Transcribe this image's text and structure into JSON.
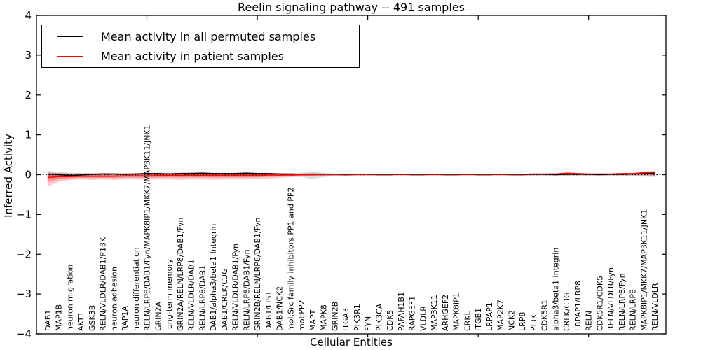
{
  "title": "Reelin signaling pathway -- 491 samples",
  "axes": {
    "x_label": "Cellular Entities",
    "y_label": "Inferred Activity",
    "y_ticks": [
      -4,
      -3,
      -2,
      -1,
      0,
      1,
      2,
      3,
      4
    ]
  },
  "legend": {
    "entries": [
      {
        "label": "Mean activity in all permuted samples",
        "color": "#000000"
      },
      {
        "label": "Mean activity in patient samples",
        "color": "#ff0000"
      }
    ]
  },
  "chart_data": {
    "type": "line",
    "title": "Reelin signaling pathway -- 491 samples",
    "xlabel": "Cellular Entities",
    "ylabel": "Inferred Activity",
    "ylim": [
      -4,
      4
    ],
    "grid": false,
    "legend_position": "upper left",
    "zero_line": {
      "y": 0,
      "style": "dotted",
      "color": "#000000"
    },
    "categories": [
      "DAB1",
      "MAP1B",
      "neuron migration",
      "AKT1",
      "GSK3B",
      "RELN/VLDLR/DAB1/P13K",
      "neuron adhesion",
      "RAP1A",
      "neuron differentiation",
      "RELN/LRP8/DAB1/Fyn/MAPK8IP1/MKK7/MAP3K11/JNK1",
      "GRIN2A",
      "long-term memory",
      "GRIN2A/RELN/LRP8/DAB1/Fyn",
      "RELN/VLDLR/DAB1",
      "RELN/LRP8/DAB1",
      "DAB1/alpha3/beta1 Integrin",
      "DAB1/CRLK/C3G",
      "RELN/VLDLR/DAB1/Fyn",
      "RELN/LRP8/DAB1/Fyn",
      "GRIN2B/RELN/LRP8/DAB1/Fyn",
      "DAB1/LIS1",
      "DAB1/NCK2",
      "mol:Src family inhibitors PP1 and PP2",
      "mol:PP2",
      "MAPT",
      "MAPK8",
      "GRIN2B",
      "ITGA3",
      "PIK3R1",
      "FYN",
      "PIK3CA",
      "CDK5",
      "PAFAH1B1",
      "RAPGEF1",
      "VLDLR",
      "MAP3K11",
      "ARHGEF2",
      "MAPK8IP1",
      "CRKL",
      "ITGB1",
      "LRPAP1",
      "MAP2K7",
      "NCK2",
      "LRP8",
      "PI3K",
      "CDK5R1",
      "alpha3/beta1 Integrin",
      "CRLK/C3G",
      "LRPAP1/LRP8",
      "RELN",
      "CDK5R1/CDK5",
      "RELN/VLDLR/Fyn",
      "RELN/LRP8/Fyn",
      "RELN/LRP8",
      "MAPK8IP1/MKK7/MAP3K11/JNK1",
      "RELN/VLDLR"
    ],
    "series": [
      {
        "name": "Mean activity in all permuted samples",
        "color": "#000000",
        "values": [
          0.02,
          0.0,
          -0.02,
          -0.01,
          0.01,
          0.02,
          0.02,
          0.01,
          0.02,
          0.03,
          0.03,
          0.02,
          0.03,
          0.03,
          0.04,
          0.03,
          0.03,
          0.03,
          0.04,
          0.03,
          0.03,
          0.02,
          0.02,
          0.01,
          0.01,
          0.01,
          0.01,
          0.0,
          0.01,
          0.01,
          0.0,
          0.0,
          0.01,
          0.0,
          0.0,
          0.01,
          0.0,
          0.0,
          0.01,
          0.0,
          0.0,
          0.01,
          0.0,
          0.0,
          0.01,
          0.01,
          0.0,
          0.01,
          0.01,
          0.01,
          0.0,
          0.01,
          0.01,
          0.02,
          0.03,
          0.04
        ]
      },
      {
        "name": "Mean activity in patient samples",
        "color": "#ff0000",
        "values": [
          -0.07,
          -0.05,
          -0.05,
          -0.04,
          -0.04,
          -0.04,
          -0.04,
          -0.03,
          -0.03,
          -0.03,
          -0.02,
          -0.02,
          -0.02,
          -0.02,
          -0.02,
          -0.02,
          -0.02,
          -0.02,
          -0.02,
          -0.02,
          -0.01,
          -0.01,
          -0.01,
          0.0,
          0.0,
          0.01,
          0.01,
          0.01,
          0.01,
          0.01,
          0.01,
          0.01,
          0.01,
          0.01,
          0.01,
          0.01,
          0.01,
          0.01,
          0.01,
          0.01,
          0.01,
          0.01,
          0.01,
          0.01,
          0.02,
          0.02,
          0.02,
          0.04,
          0.03,
          0.02,
          0.02,
          0.02,
          0.03,
          0.03,
          0.05,
          0.06
        ]
      }
    ],
    "bands": [
      {
        "name": "permuted-range",
        "color": "#000000",
        "opacity": 0.13,
        "upper": [
          0.1,
          0.07,
          0.05,
          0.04,
          0.04,
          0.04,
          0.04,
          0.04,
          0.04,
          0.05,
          0.05,
          0.05,
          0.05,
          0.06,
          0.06,
          0.05,
          0.05,
          0.05,
          0.06,
          0.05,
          0.05,
          0.04,
          0.04,
          0.05,
          0.09,
          0.05,
          0.03,
          0.03,
          0.03,
          0.03,
          0.02,
          0.02,
          0.02,
          0.02,
          0.02,
          0.02,
          0.02,
          0.02,
          0.02,
          0.02,
          0.02,
          0.02,
          0.02,
          0.02,
          0.02,
          0.02,
          0.02,
          0.02,
          0.02,
          0.02,
          0.02,
          0.02,
          0.02,
          0.03,
          0.06,
          0.07
        ],
        "lower": [
          -0.12,
          -0.09,
          -0.07,
          -0.06,
          -0.06,
          -0.06,
          -0.06,
          -0.06,
          -0.06,
          -0.06,
          -0.06,
          -0.06,
          -0.06,
          -0.06,
          -0.06,
          -0.06,
          -0.06,
          -0.06,
          -0.06,
          -0.06,
          -0.05,
          -0.05,
          -0.05,
          -0.06,
          -0.11,
          -0.06,
          -0.03,
          -0.03,
          -0.03,
          -0.03,
          -0.02,
          -0.02,
          -0.02,
          -0.02,
          -0.02,
          -0.02,
          -0.02,
          -0.02,
          -0.02,
          -0.02,
          -0.02,
          -0.02,
          -0.02,
          -0.02,
          -0.02,
          -0.02,
          -0.02,
          -0.02,
          -0.02,
          -0.02,
          -0.02,
          -0.02,
          -0.02,
          -0.03,
          -0.05,
          -0.06
        ]
      },
      {
        "name": "patient-range",
        "color": "#ff0000",
        "opacity": 0.22,
        "upper": [
          0.05,
          0.05,
          0.04,
          0.04,
          0.04,
          0.05,
          0.04,
          0.04,
          0.04,
          0.05,
          0.05,
          0.05,
          0.05,
          0.06,
          0.06,
          0.05,
          0.05,
          0.05,
          0.06,
          0.05,
          0.05,
          0.04,
          0.03,
          0.02,
          0.02,
          0.02,
          0.02,
          0.02,
          0.02,
          0.02,
          0.02,
          0.02,
          0.02,
          0.02,
          0.02,
          0.02,
          0.02,
          0.02,
          0.02,
          0.02,
          0.02,
          0.02,
          0.02,
          0.02,
          0.03,
          0.03,
          0.03,
          0.06,
          0.04,
          0.03,
          0.03,
          0.03,
          0.04,
          0.05,
          0.08,
          0.1
        ],
        "lower": [
          -0.3,
          -0.18,
          -0.13,
          -0.12,
          -0.13,
          -0.12,
          -0.13,
          -0.12,
          -0.12,
          -0.13,
          -0.12,
          -0.12,
          -0.13,
          -0.12,
          -0.12,
          -0.13,
          -0.12,
          -0.12,
          -0.12,
          -0.11,
          -0.1,
          -0.08,
          -0.06,
          -0.04,
          -0.03,
          -0.03,
          -0.03,
          -0.03,
          -0.02,
          -0.02,
          -0.02,
          -0.02,
          -0.02,
          -0.02,
          -0.02,
          -0.02,
          -0.02,
          -0.02,
          -0.02,
          -0.02,
          -0.02,
          -0.02,
          -0.02,
          -0.02,
          -0.02,
          -0.02,
          -0.02,
          -0.02,
          -0.02,
          -0.02,
          -0.02,
          -0.02,
          -0.02,
          -0.02,
          -0.02,
          -0.03
        ]
      }
    ]
  }
}
